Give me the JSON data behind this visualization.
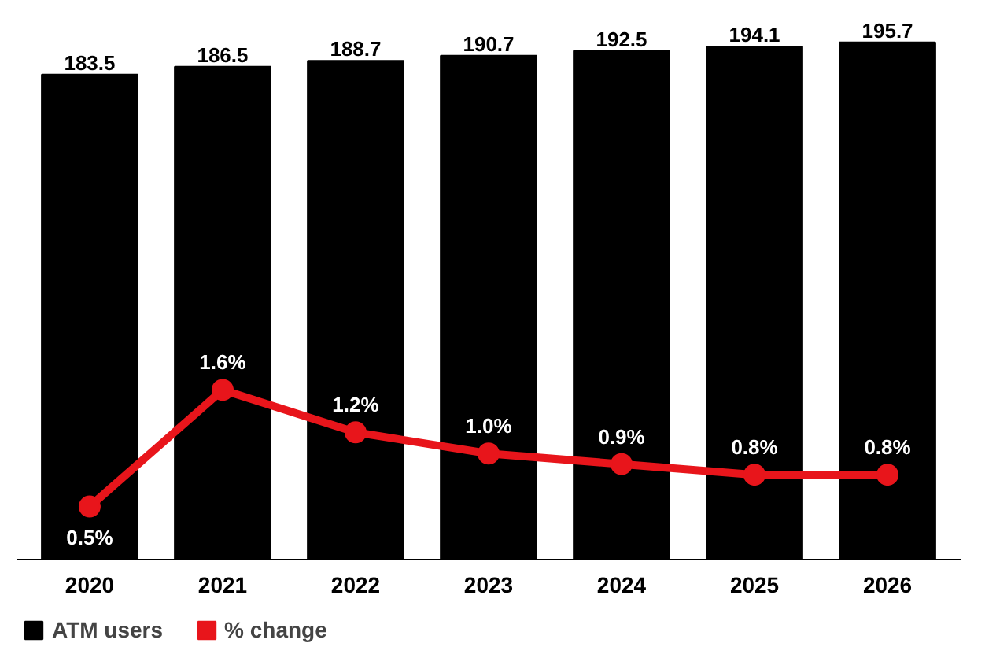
{
  "chart_data": {
    "type": "bar",
    "categories": [
      "2020",
      "2021",
      "2022",
      "2023",
      "2024",
      "2025",
      "2026"
    ],
    "series": [
      {
        "name": "ATM users",
        "color": "#000000",
        "values": [
          183.5,
          186.5,
          188.7,
          190.7,
          192.5,
          194.1,
          195.7
        ]
      },
      {
        "name": "% change",
        "type": "line",
        "axis": "y2",
        "color": "#e8151b",
        "values": [
          0.5,
          1.6,
          1.2,
          1.0,
          0.9,
          0.8,
          0.8
        ],
        "value_labels": [
          "0.5%",
          "1.6%",
          "1.2%",
          "1.0%",
          "0.9%",
          "0.8%",
          "0.8%"
        ]
      }
    ],
    "data_labels": true,
    "marker": "circle",
    "legend": "bottom left",
    "grid": false,
    "tick_labels": "x"
  }
}
